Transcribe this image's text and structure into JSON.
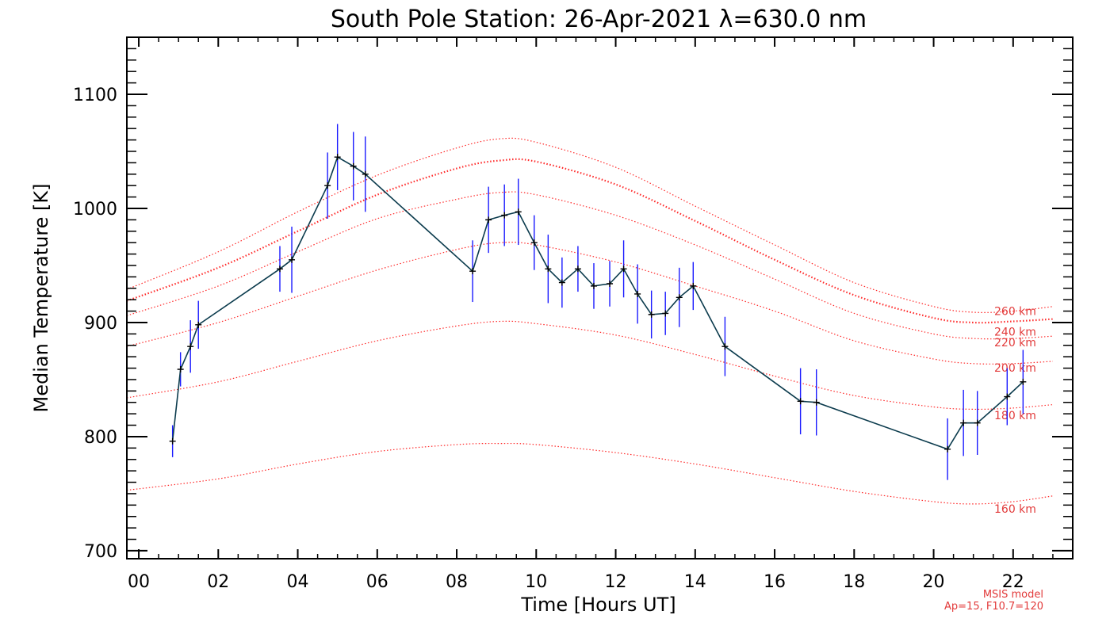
{
  "chart_data": {
    "type": "line",
    "title": "South Pole Station: 26-Apr-2021 λ=630.0 nm",
    "xlabel": "Time [Hours UT]",
    "ylabel": "Median Temperature [K]",
    "xlim": [
      -0.3,
      23.5
    ],
    "ylim": [
      693,
      1150
    ],
    "x_ticks": [
      0,
      2,
      4,
      6,
      8,
      10,
      12,
      14,
      16,
      18,
      20,
      22
    ],
    "x_tick_labels": [
      "00",
      "02",
      "04",
      "06",
      "08",
      "10",
      "12",
      "14",
      "16",
      "18",
      "20",
      "22"
    ],
    "y_ticks": [
      700,
      800,
      900,
      1000,
      1100
    ],
    "y_tick_labels": [
      "700",
      "800",
      "900",
      "1000",
      "1100"
    ],
    "colors": {
      "data_line": "#0b3b4d",
      "error_bar": "#1a1aff",
      "model": "#ff2a2a",
      "axes": "#000000"
    },
    "series": [
      {
        "name": "Median Temperature",
        "x": [
          0.85,
          1.05,
          1.3,
          1.5,
          3.55,
          3.85,
          4.75,
          5.0,
          5.4,
          5.7,
          8.4,
          8.8,
          9.2,
          9.55,
          9.95,
          10.3,
          10.65,
          11.05,
          11.45,
          11.85,
          12.2,
          12.55,
          12.9,
          13.25,
          13.6,
          13.95,
          14.75,
          16.65,
          17.05,
          20.35,
          20.75,
          21.1,
          21.85,
          22.25
        ],
        "y": [
          796,
          859,
          879,
          898,
          947,
          955,
          1020,
          1045,
          1037,
          1030,
          945,
          990,
          994,
          997,
          970,
          947,
          935,
          947,
          932,
          934,
          947,
          925,
          907,
          908,
          922,
          932,
          879,
          831,
          830,
          789,
          812,
          812,
          835,
          848
        ],
        "err": [
          14,
          15,
          23,
          21,
          20,
          29,
          29,
          29,
          30,
          33,
          27,
          29,
          27,
          29,
          24,
          30,
          22,
          20,
          20,
          20,
          25,
          26,
          21,
          19,
          26,
          21,
          26,
          29,
          29,
          27,
          29,
          28,
          25,
          28
        ]
      }
    ],
    "model": {
      "note_line1": "MSIS model",
      "note_line2": "Ap=15, F10.7=120",
      "x": [
        -0.3,
        2,
        4,
        6,
        8,
        9.1,
        10,
        12,
        14,
        16,
        18,
        20,
        21,
        22,
        23
      ],
      "curves": [
        {
          "label": "160 km",
          "y": [
            753,
            763,
            776,
            787,
            793,
            794,
            793,
            786,
            776,
            764,
            752,
            743,
            741,
            743,
            748
          ]
        },
        {
          "label": "180 km",
          "y": [
            834,
            848,
            866,
            884,
            897,
            901,
            899,
            889,
            872,
            853,
            836,
            826,
            824,
            825,
            828
          ]
        },
        {
          "label": "200 km",
          "y": [
            879,
            900,
            923,
            946,
            964,
            970,
            968,
            953,
            932,
            910,
            884,
            868,
            864,
            864,
            866
          ]
        },
        {
          "label": "220 km",
          "y": [
            906,
            932,
            962,
            991,
            1008,
            1014,
            1012,
            994,
            968,
            938,
            908,
            890,
            886,
            886,
            888
          ]
        },
        {
          "label": "240 km",
          "y": [
            919,
            948,
            980,
            1012,
            1035,
            1042,
            1041,
            1021,
            989,
            955,
            924,
            904,
            900,
            901,
            903
          ]
        },
        {
          "label": "260 km",
          "y": [
            929,
            962,
            997,
            1029,
            1053,
            1061,
            1058,
            1036,
            1002,
            968,
            935,
            914,
            909,
            910,
            914
          ]
        }
      ]
    }
  }
}
